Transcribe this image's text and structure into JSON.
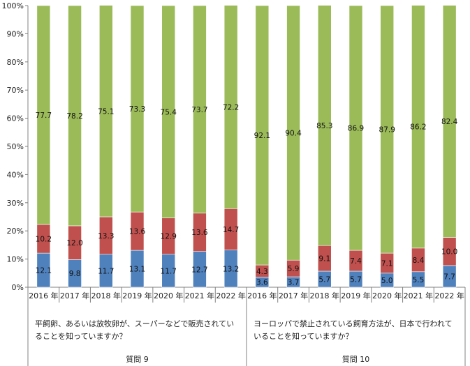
{
  "chart_data": {
    "type": "bar",
    "stacked": true,
    "y_axis": {
      "min": 0,
      "max": 100,
      "step": 10,
      "tick_labels": [
        "0%",
        "10%",
        "20%",
        "30%",
        "40%",
        "50%",
        "60%",
        "70%",
        "80%",
        "90%",
        "100%"
      ]
    },
    "grid": false,
    "colors": {
      "bottom": "#4f81bd",
      "middle": "#c0504d",
      "top": "#9bbb59",
      "border": "#ffffff",
      "axis": "#808080"
    },
    "groups": [
      {
        "name": "質問 9",
        "question": [
          "平飼卵、あるいは放牧卵が、スーパーなどで販売されてい",
          "ることを知っていますか？"
        ],
        "categories": [
          "2016 年",
          "2017 年",
          "2018 年",
          "2019 年",
          "2020 年",
          "2021 年",
          "2022 年"
        ],
        "series": [
          {
            "values": [
              12.1,
              9.8,
              11.7,
              13.1,
              11.7,
              12.7,
              13.2
            ]
          },
          {
            "values": [
              10.2,
              12.0,
              13.3,
              13.6,
              12.9,
              13.6,
              14.7
            ]
          },
          {
            "values": [
              77.7,
              78.2,
              75.1,
              73.3,
              75.4,
              73.7,
              72.2
            ]
          }
        ]
      },
      {
        "name": "質問 10",
        "question": [
          "ヨーロッパで禁止されている飼育方法が、日本で行われて",
          "いることを知っていますか？"
        ],
        "categories": [
          "2016 年",
          "2017 年",
          "2018 年",
          "2019 年",
          "2020 年",
          "2021 年",
          "2022 年"
        ],
        "series": [
          {
            "values": [
              3.6,
              3.7,
              5.7,
              5.7,
              5.0,
              5.5,
              7.7
            ]
          },
          {
            "values": [
              4.3,
              5.9,
              9.1,
              7.4,
              7.1,
              8.4,
              10.0
            ]
          },
          {
            "values": [
              92.1,
              90.4,
              85.3,
              86.9,
              87.9,
              86.2,
              82.4
            ]
          }
        ]
      }
    ]
  }
}
